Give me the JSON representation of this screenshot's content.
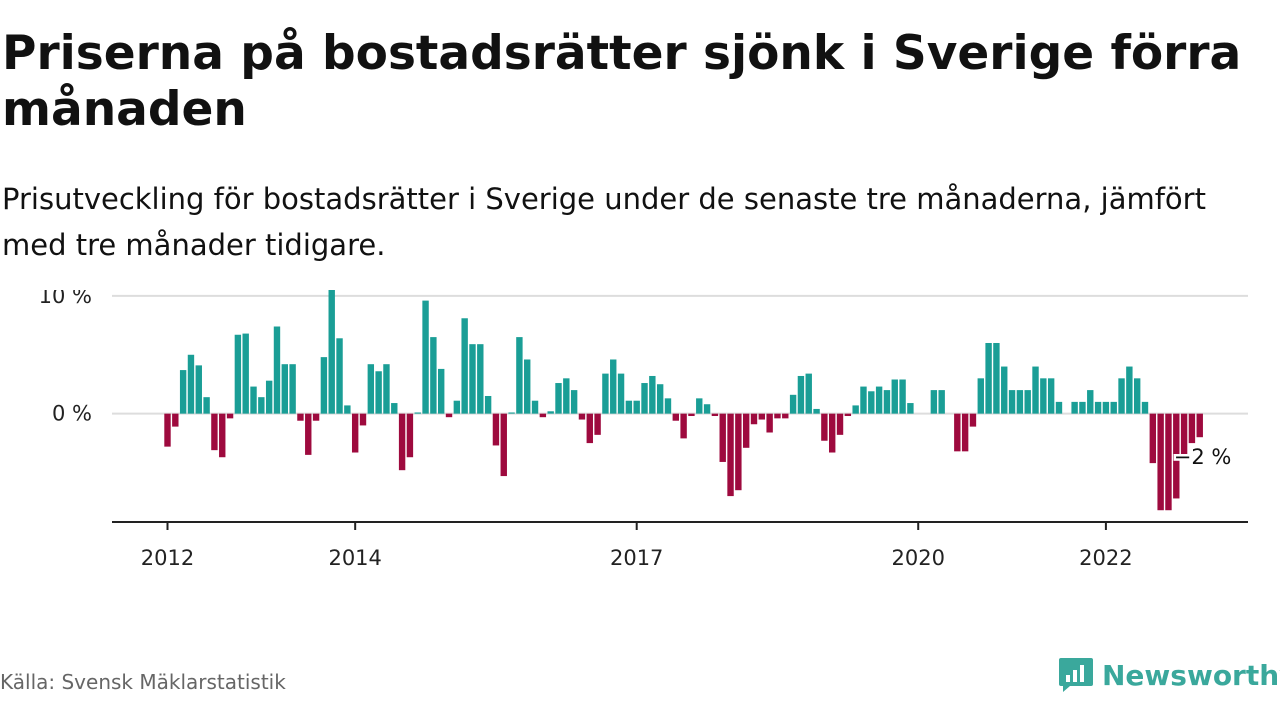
{
  "title": "Priserna på bostadsrätter sjönk i Sverige förra månaden",
  "subtitle": "Prisutveckling för bostadsrätter i Sverige under de senaste tre månaderna, jämfört med tre månader tidigare.",
  "source": "Källa: Svensk Mäklarstatistik",
  "brand": {
    "name": "Newsworthy",
    "icon": "newsworthy-logo-icon"
  },
  "colors": {
    "positive": "#1a9e96",
    "negative": "#9e0a3e",
    "grid": "#dddddd",
    "axis": "#222222"
  },
  "chart_data": {
    "type": "bar",
    "ylim": [
      -9.2,
      10.5
    ],
    "y_ticks": [
      {
        "value": 10,
        "label": "10 %"
      },
      {
        "value": 0,
        "label": "0 %"
      }
    ],
    "x_ticks": [
      {
        "month_index": 0,
        "label": "2012"
      },
      {
        "month_index": 24,
        "label": "2014"
      },
      {
        "month_index": 60,
        "label": "2017"
      },
      {
        "month_index": 96,
        "label": "2020"
      },
      {
        "month_index": 120,
        "label": "2022"
      }
    ],
    "start": "2012-01",
    "end": "2023-01",
    "values": [
      -2.8,
      -1.1,
      3.7,
      5.0,
      4.1,
      1.4,
      -3.1,
      -3.7,
      -0.4,
      6.7,
      6.8,
      2.3,
      1.4,
      2.8,
      7.4,
      4.2,
      4.2,
      -0.6,
      -3.5,
      -0.6,
      4.8,
      10.8,
      6.4,
      0.7,
      -3.3,
      -1.0,
      4.2,
      3.6,
      4.2,
      0.9,
      -4.8,
      -3.7,
      0.1,
      9.6,
      6.5,
      3.8,
      -0.3,
      1.1,
      8.1,
      5.9,
      5.9,
      1.5,
      -2.7,
      -5.3,
      0.1,
      6.5,
      4.6,
      1.1,
      -0.3,
      0.2,
      2.6,
      3.0,
      2.0,
      -0.5,
      -2.5,
      -1.8,
      3.4,
      4.6,
      3.4,
      1.1,
      1.1,
      2.6,
      3.2,
      2.5,
      1.3,
      -0.6,
      -2.1,
      -0.2,
      1.3,
      0.8,
      -0.2,
      -4.1,
      -7.0,
      -6.5,
      -2.9,
      -0.9,
      -0.5,
      -1.6,
      -0.4,
      -0.4,
      1.6,
      3.2,
      3.4,
      0.4,
      -2.3,
      -3.3,
      -1.8,
      -0.2,
      0.7,
      2.3,
      1.9,
      2.3,
      2.0,
      2.9,
      2.9,
      0.9,
      0,
      0,
      2.0,
      2.0,
      0,
      -3.2,
      -3.2,
      -1.1,
      3.0,
      6.0,
      6.0,
      4.0,
      2.0,
      2.0,
      2.0,
      4.0,
      3.0,
      3.0,
      1.0,
      0,
      1.0,
      1.0,
      2.0,
      1.0,
      1.0,
      1.0,
      3.0,
      4.0,
      3.0,
      1.0,
      -4.2,
      -8.2,
      -8.2,
      -7.2,
      -3.5,
      -2.5,
      -2.0
    ],
    "annotation": {
      "month_index": 132,
      "label": "−2 %"
    }
  }
}
